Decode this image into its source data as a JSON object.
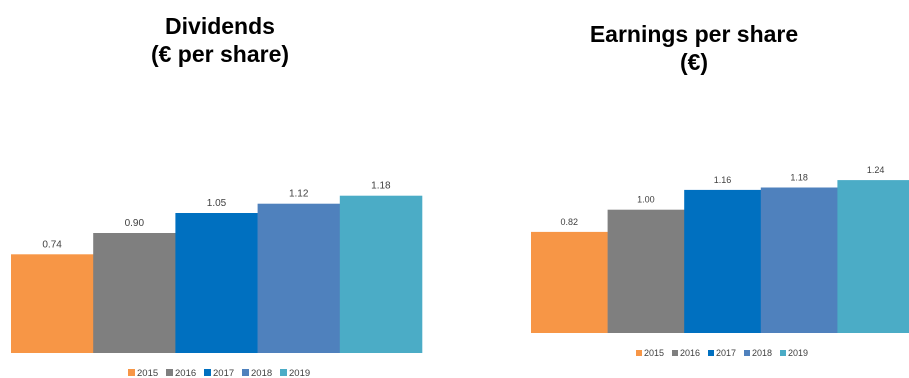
{
  "chart_data": [
    {
      "type": "bar",
      "title_line1": "Dividends",
      "title_line2": "(€ per share)",
      "categories": [
        "2015",
        "2016",
        "2017",
        "2018",
        "2019"
      ],
      "values": [
        0.74,
        0.9,
        1.05,
        1.12,
        1.18
      ],
      "value_labels": [
        "0.74",
        "0.90",
        "1.05",
        "1.12",
        "1.18"
      ],
      "legend": [
        "2015",
        "2016",
        "2017",
        "2018",
        "2019"
      ],
      "legend_position": "bottom",
      "grid": false,
      "ylim": [
        0,
        1.5
      ],
      "colors": [
        "#F79646",
        "#7F7F7F",
        "#0070C0",
        "#4F81BD",
        "#4BACC6"
      ]
    },
    {
      "type": "bar",
      "title_line1": "Earnings per share",
      "title_line2": "(€)",
      "categories": [
        "2015",
        "2016",
        "2017",
        "2018",
        "2019"
      ],
      "values": [
        0.82,
        1.0,
        1.16,
        1.18,
        1.24
      ],
      "value_labels": [
        "0.82",
        "1.00",
        "1.16",
        "1.18",
        "1.24"
      ],
      "legend": [
        "2015",
        "2016",
        "2017",
        "2018",
        "2019"
      ],
      "legend_position": "bottom",
      "grid": false,
      "ylim": [
        0,
        1.5
      ],
      "colors": [
        "#F79646",
        "#7F7F7F",
        "#0070C0",
        "#4F81BD",
        "#4BACC6"
      ]
    }
  ]
}
